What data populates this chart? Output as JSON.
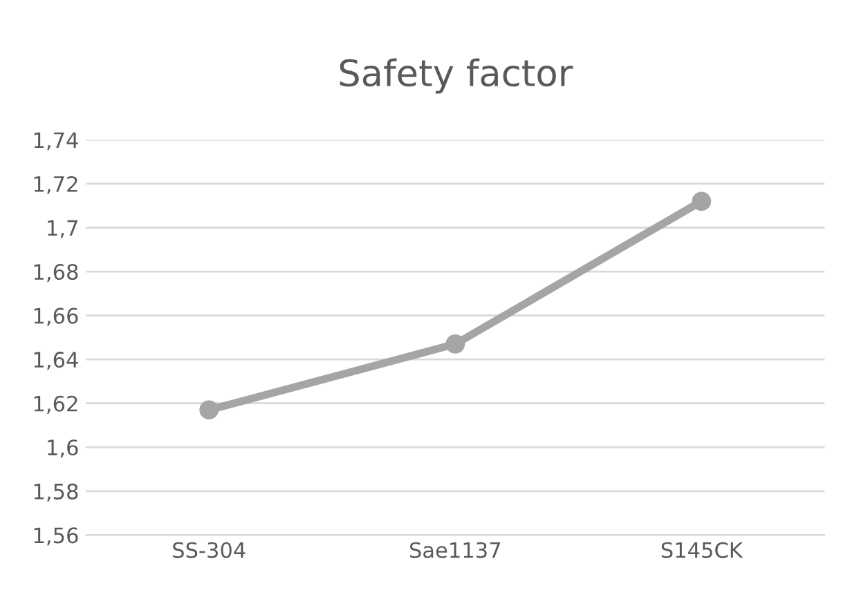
{
  "chart_data": {
    "type": "line",
    "title": "Safety factor",
    "categories": [
      "SS-304",
      "Sae1137",
      "S145CK"
    ],
    "series": [
      {
        "color": "#a5a5a5",
        "values": [
          1.617,
          1.647,
          1.712
        ]
      }
    ],
    "ylim": [
      1.56,
      1.74
    ],
    "yticks": [
      {
        "value": 1.56,
        "label": "1,56"
      },
      {
        "value": 1.58,
        "label": "1,58"
      },
      {
        "value": 1.6,
        "label": "1,6"
      },
      {
        "value": 1.62,
        "label": "1,62"
      },
      {
        "value": 1.64,
        "label": "1,64"
      },
      {
        "value": 1.66,
        "label": "1,66"
      },
      {
        "value": 1.68,
        "label": "1,68"
      },
      {
        "value": 1.7,
        "label": "1,7"
      },
      {
        "value": 1.72,
        "label": "1,72"
      },
      {
        "value": 1.74,
        "label": "1,74"
      }
    ],
    "grid": "y",
    "marker": "circle",
    "line_style": "solid",
    "legend": false
  }
}
